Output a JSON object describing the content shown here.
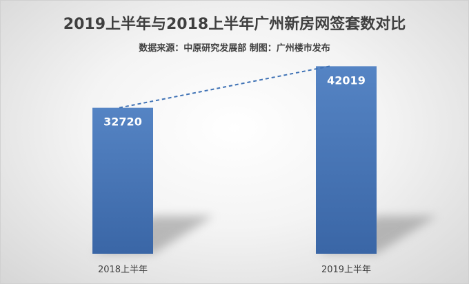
{
  "chart_data": {
    "type": "bar",
    "title": "2019上半年与2018上半年广州新房网签套数对比",
    "subtitle": "数据来源：中原研究发展部 制图：广州楼市发布",
    "categories": [
      "2018上半年",
      "2019上半年"
    ],
    "values": [
      32720,
      42019
    ],
    "data_labels": [
      "32720",
      "42019"
    ],
    "xlabel": "",
    "ylabel": "",
    "ylim": [
      0,
      45000
    ],
    "grid": false,
    "legend": "none",
    "trend_line": true,
    "colors": {
      "bar_top": "#5584c4",
      "bar_bottom": "#3a66a6",
      "trend_line": "#3f72b5",
      "label_text": "#ffffff",
      "axis_text": "#404040"
    }
  }
}
